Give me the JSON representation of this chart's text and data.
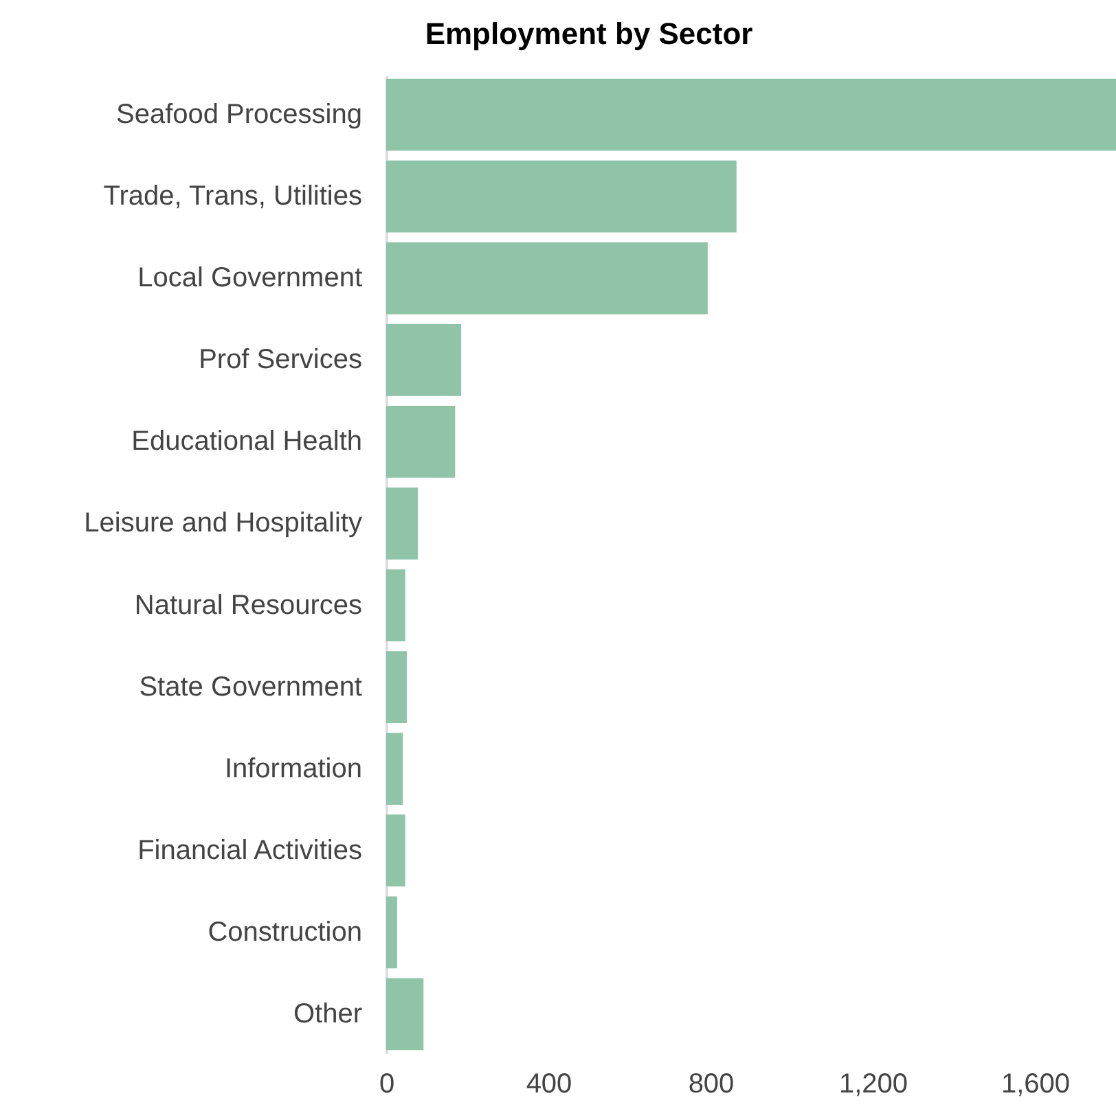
{
  "chart_data": {
    "type": "bar",
    "orientation": "horizontal",
    "title": "Employment by Sector",
    "categories": [
      "Seafood Processing",
      "Trade, Trans, Utilities",
      "Local Government",
      "Prof Services",
      "Educational Health",
      "Leisure and Hospitality",
      "Natural Resources",
      "State Government",
      "Information",
      "Financial Activities",
      "Construction",
      "Other"
    ],
    "values": [
      1800,
      864,
      793,
      185,
      170,
      78,
      47,
      51,
      41,
      47,
      27,
      92
    ],
    "color": "#8fc4a8",
    "xlim": [
      0,
      1800
    ],
    "xticks": [
      0,
      {
        "value": 400,
        "label": "400"
      },
      {
        "value": 800,
        "label": "800"
      },
      {
        "value": 1200,
        "label": "1,200"
      },
      {
        "value": 1600,
        "label": "1,600"
      }
    ],
    "grid": false
  }
}
